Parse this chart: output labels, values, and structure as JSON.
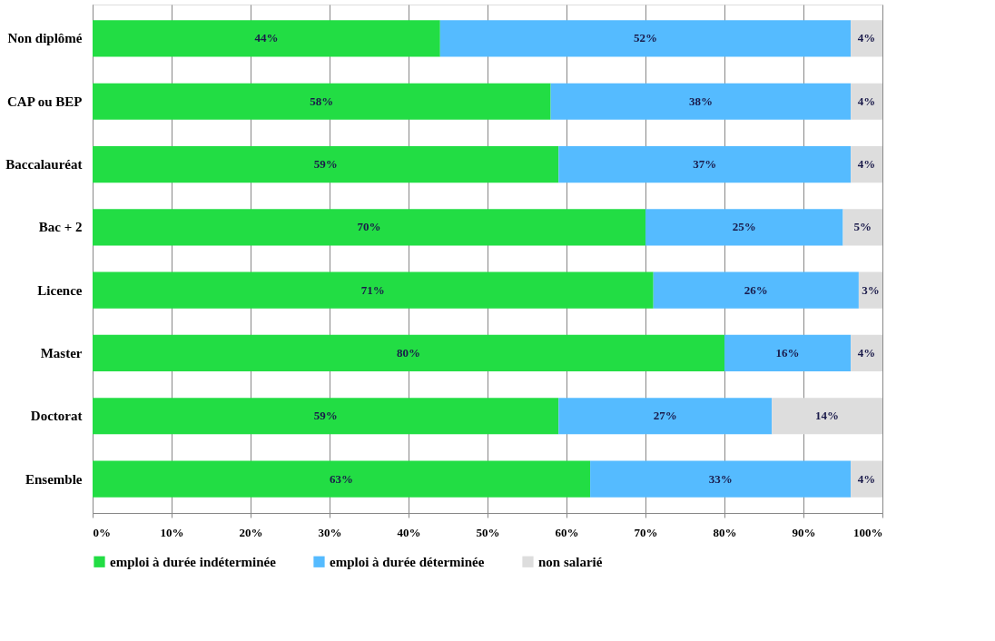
{
  "chart_data": {
    "type": "bar",
    "orientation": "horizontal",
    "stacked": true,
    "categories": [
      "Non diplômé",
      "CAP ou BEP",
      "Baccalauréat",
      "Bac + 2",
      "Licence",
      "Master",
      "Doctorat",
      "Ensemble"
    ],
    "series": [
      {
        "name": "emploi à durée indéterminée",
        "color": "#22dd44",
        "values": [
          44,
          58,
          59,
          70,
          71,
          80,
          59,
          63
        ],
        "value_labels": [
          "44%",
          "58%",
          "59%",
          "70%",
          "71%",
          "80%",
          "59%",
          "63%"
        ]
      },
      {
        "name": "emploi à durée déterminée",
        "color": "#55bbff",
        "values": [
          52,
          38,
          37,
          25,
          26,
          16,
          27,
          33
        ],
        "value_labels": [
          "52%",
          "38%",
          "37%",
          "25%",
          "26%",
          "16%",
          "27%",
          "33%"
        ]
      },
      {
        "name": "non salarié",
        "color": "#dddddd",
        "values": [
          4,
          4,
          4,
          5,
          3,
          4,
          14,
          4
        ],
        "value_labels": [
          "4%",
          "4%",
          "4%",
          "5%",
          "3%",
          "4%",
          "14%",
          "4%"
        ]
      }
    ],
    "xlim": [
      0,
      100
    ],
    "xticks": [
      {
        "value": 0,
        "label": "0%"
      },
      {
        "value": 10,
        "label": "10%"
      },
      {
        "value": 20,
        "label": "20%"
      },
      {
        "value": 30,
        "label": "30%"
      },
      {
        "value": 40,
        "label": "40%"
      },
      {
        "value": 50,
        "label": "50%"
      },
      {
        "value": 60,
        "label": "60%"
      },
      {
        "value": 70,
        "label": "70%"
      },
      {
        "value": 80,
        "label": "80%"
      },
      {
        "value": 90,
        "label": "90%"
      },
      {
        "value": 100,
        "label": "100%"
      }
    ],
    "grid": "x",
    "legend": "bottom"
  }
}
